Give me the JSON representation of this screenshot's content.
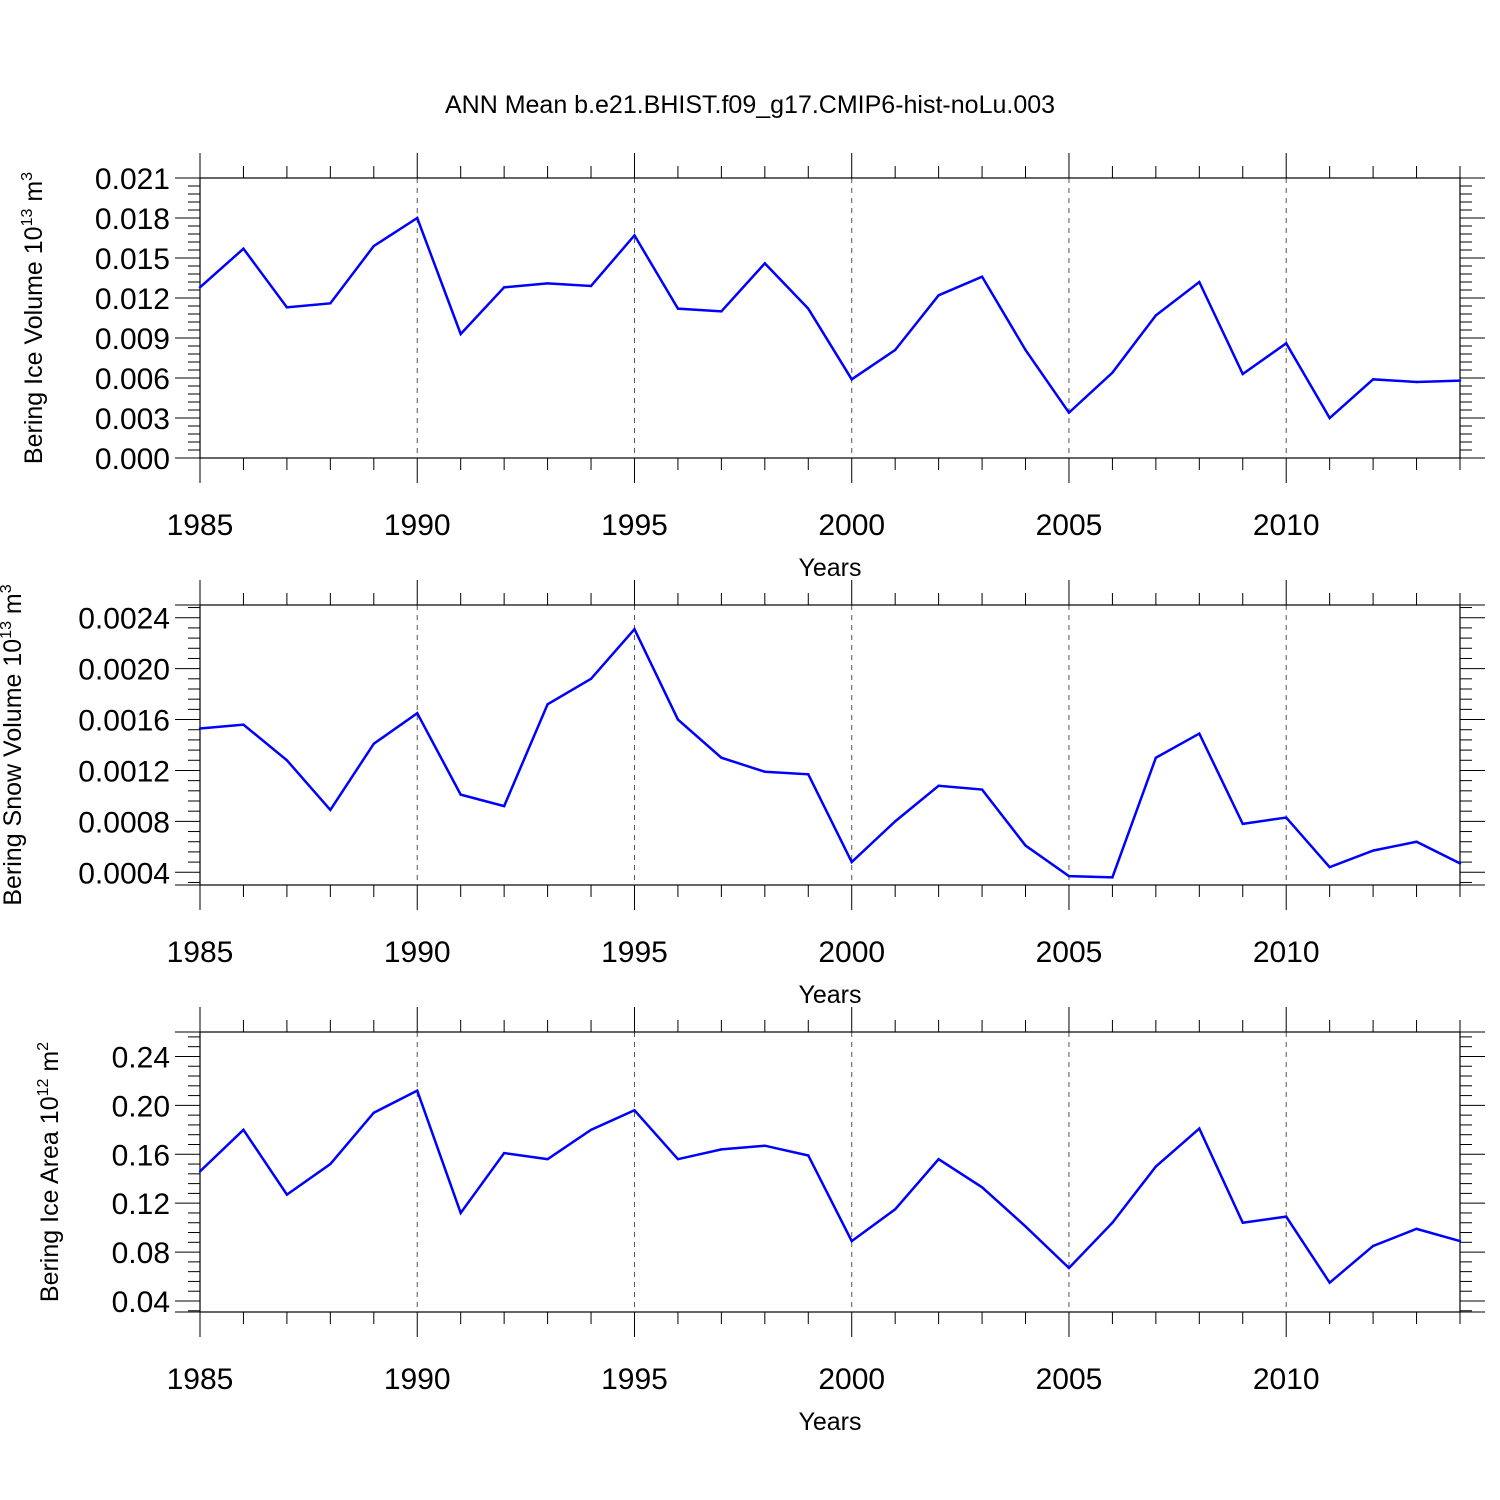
{
  "title": "ANN Mean b.e21.BHIST.f09_g17.CMIP6-hist-noLu.003",
  "chart_data": [
    {
      "type": "line",
      "ylabel_base": "Bering Ice Volume 10",
      "ylabel_exp": "13",
      "ylabel_unit": "m",
      "ylabel_unit_exp": "3",
      "xlabel": "Years",
      "xlim": [
        1985,
        2014
      ],
      "ylim": [
        0.0,
        0.021
      ],
      "yticks": [
        0.0,
        0.003,
        0.006,
        0.009,
        0.012,
        0.015,
        0.018,
        0.021
      ],
      "ytick_labels": [
        "0.000",
        "0.003",
        "0.006",
        "0.009",
        "0.012",
        "0.015",
        "0.018",
        "0.021"
      ],
      "xticks": [
        1985,
        1990,
        1995,
        2000,
        2005,
        2010
      ],
      "xtick_labels": [
        "1985",
        "1990",
        "1995",
        "2000",
        "2005",
        "2010"
      ],
      "color": "#0000ff",
      "x": [
        1985,
        1986,
        1987,
        1988,
        1989,
        1990,
        1991,
        1992,
        1993,
        1994,
        1995,
        1996,
        1997,
        1998,
        1999,
        2000,
        2001,
        2002,
        2003,
        2004,
        2005,
        2006,
        2007,
        2008,
        2009,
        2010,
        2011,
        2012,
        2013,
        2014
      ],
      "values": [
        0.0128,
        0.0157,
        0.0113,
        0.0116,
        0.0159,
        0.018,
        0.0093,
        0.0128,
        0.0131,
        0.0129,
        0.0167,
        0.0112,
        0.011,
        0.0146,
        0.0112,
        0.0059,
        0.0081,
        0.0122,
        0.0136,
        0.0081,
        0.0034,
        0.0064,
        0.0107,
        0.0132,
        0.0063,
        0.0086,
        0.003,
        0.0059,
        0.0057,
        0.0058
      ]
    },
    {
      "type": "line",
      "ylabel_base": "Bering Snow Volume 10",
      "ylabel_exp": "13",
      "ylabel_unit": "m",
      "ylabel_unit_exp": "3",
      "xlabel": "Years",
      "xlim": [
        1985,
        2014
      ],
      "ylim": [
        0.0003,
        0.0025
      ],
      "yticks": [
        0.0004,
        0.0008,
        0.0012,
        0.0016,
        0.002,
        0.0024
      ],
      "ytick_labels": [
        "0.0004",
        "0.0008",
        "0.0012",
        "0.0016",
        "0.0020",
        "0.0024"
      ],
      "xticks": [
        1985,
        1990,
        1995,
        2000,
        2005,
        2010
      ],
      "xtick_labels": [
        "1985",
        "1990",
        "1995",
        "2000",
        "2005",
        "2010"
      ],
      "color": "#0000ff",
      "x": [
        1985,
        1986,
        1987,
        1988,
        1989,
        1990,
        1991,
        1992,
        1993,
        1994,
        1995,
        1996,
        1997,
        1998,
        1999,
        2000,
        2001,
        2002,
        2003,
        2004,
        2005,
        2006,
        2007,
        2008,
        2009,
        2010,
        2011,
        2012,
        2013,
        2014
      ],
      "values": [
        0.00153,
        0.00156,
        0.00128,
        0.00089,
        0.00141,
        0.00165,
        0.00101,
        0.00092,
        0.00172,
        0.00192,
        0.00231,
        0.0016,
        0.0013,
        0.00119,
        0.00117,
        0.00048,
        0.0008,
        0.00108,
        0.00105,
        0.00061,
        0.00037,
        0.00036,
        0.0013,
        0.00149,
        0.00078,
        0.00083,
        0.00044,
        0.00057,
        0.00064,
        0.00047
      ]
    },
    {
      "type": "line",
      "ylabel_base": "Bering Ice Area 10",
      "ylabel_exp": "12",
      "ylabel_unit": "m",
      "ylabel_unit_exp": "2",
      "xlabel": "Years",
      "xlim": [
        1985,
        2014
      ],
      "ylim": [
        0.031,
        0.26
      ],
      "yticks": [
        0.04,
        0.08,
        0.12,
        0.16,
        0.2,
        0.24
      ],
      "ytick_labels": [
        "0.04",
        "0.08",
        "0.12",
        "0.16",
        "0.20",
        "0.24"
      ],
      "xticks": [
        1985,
        1990,
        1995,
        2000,
        2005,
        2010
      ],
      "xtick_labels": [
        "1985",
        "1990",
        "1995",
        "2000",
        "2005",
        "2010"
      ],
      "color": "#0000ff",
      "x": [
        1985,
        1986,
        1987,
        1988,
        1989,
        1990,
        1991,
        1992,
        1993,
        1994,
        1995,
        1996,
        1997,
        1998,
        1999,
        2000,
        2001,
        2002,
        2003,
        2004,
        2005,
        2006,
        2007,
        2008,
        2009,
        2010,
        2011,
        2012,
        2013,
        2014
      ],
      "values": [
        0.146,
        0.18,
        0.127,
        0.152,
        0.194,
        0.212,
        0.112,
        0.161,
        0.156,
        0.18,
        0.196,
        0.156,
        0.164,
        0.167,
        0.159,
        0.089,
        0.115,
        0.156,
        0.133,
        0.101,
        0.067,
        0.104,
        0.15,
        0.181,
        0.104,
        0.109,
        0.055,
        0.085,
        0.099,
        0.089
      ]
    }
  ]
}
